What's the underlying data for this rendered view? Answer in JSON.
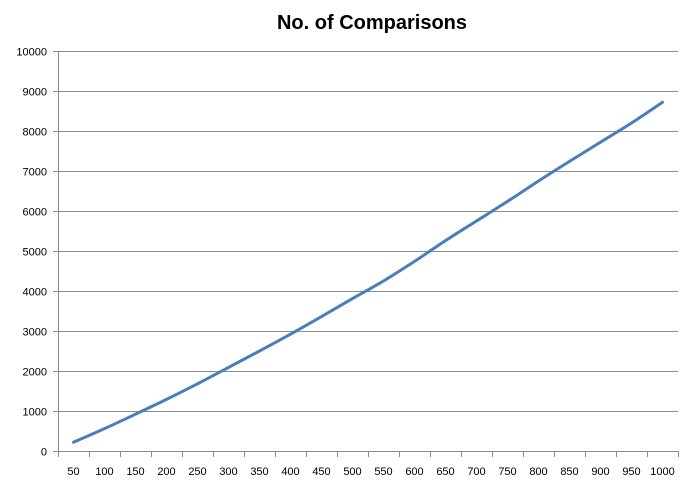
{
  "chart_data": {
    "type": "line",
    "title": "No. of Comparisons",
    "xlabel": "",
    "ylabel": "",
    "categories": [
      "50",
      "100",
      "150",
      "200",
      "250",
      "300",
      "350",
      "400",
      "450",
      "500",
      "550",
      "600",
      "650",
      "700",
      "750",
      "800",
      "850",
      "900",
      "950",
      "1000"
    ],
    "series": [
      {
        "values": [
          220,
          560,
          920,
          1290,
          1680,
          2090,
          2500,
          2920,
          3360,
          3810,
          4250,
          4740,
          5260,
          5750,
          6240,
          6750,
          7240,
          7720,
          8200,
          8720
        ]
      }
    ],
    "ylim": [
      0,
      10000
    ],
    "yticks": [
      0,
      1000,
      2000,
      3000,
      4000,
      5000,
      6000,
      7000,
      8000,
      9000,
      10000
    ],
    "grid": "horizontal",
    "colors": {
      "line": "#4a7ebb",
      "grid": "#8c8c8c",
      "axis": "#8c8c8c"
    }
  }
}
